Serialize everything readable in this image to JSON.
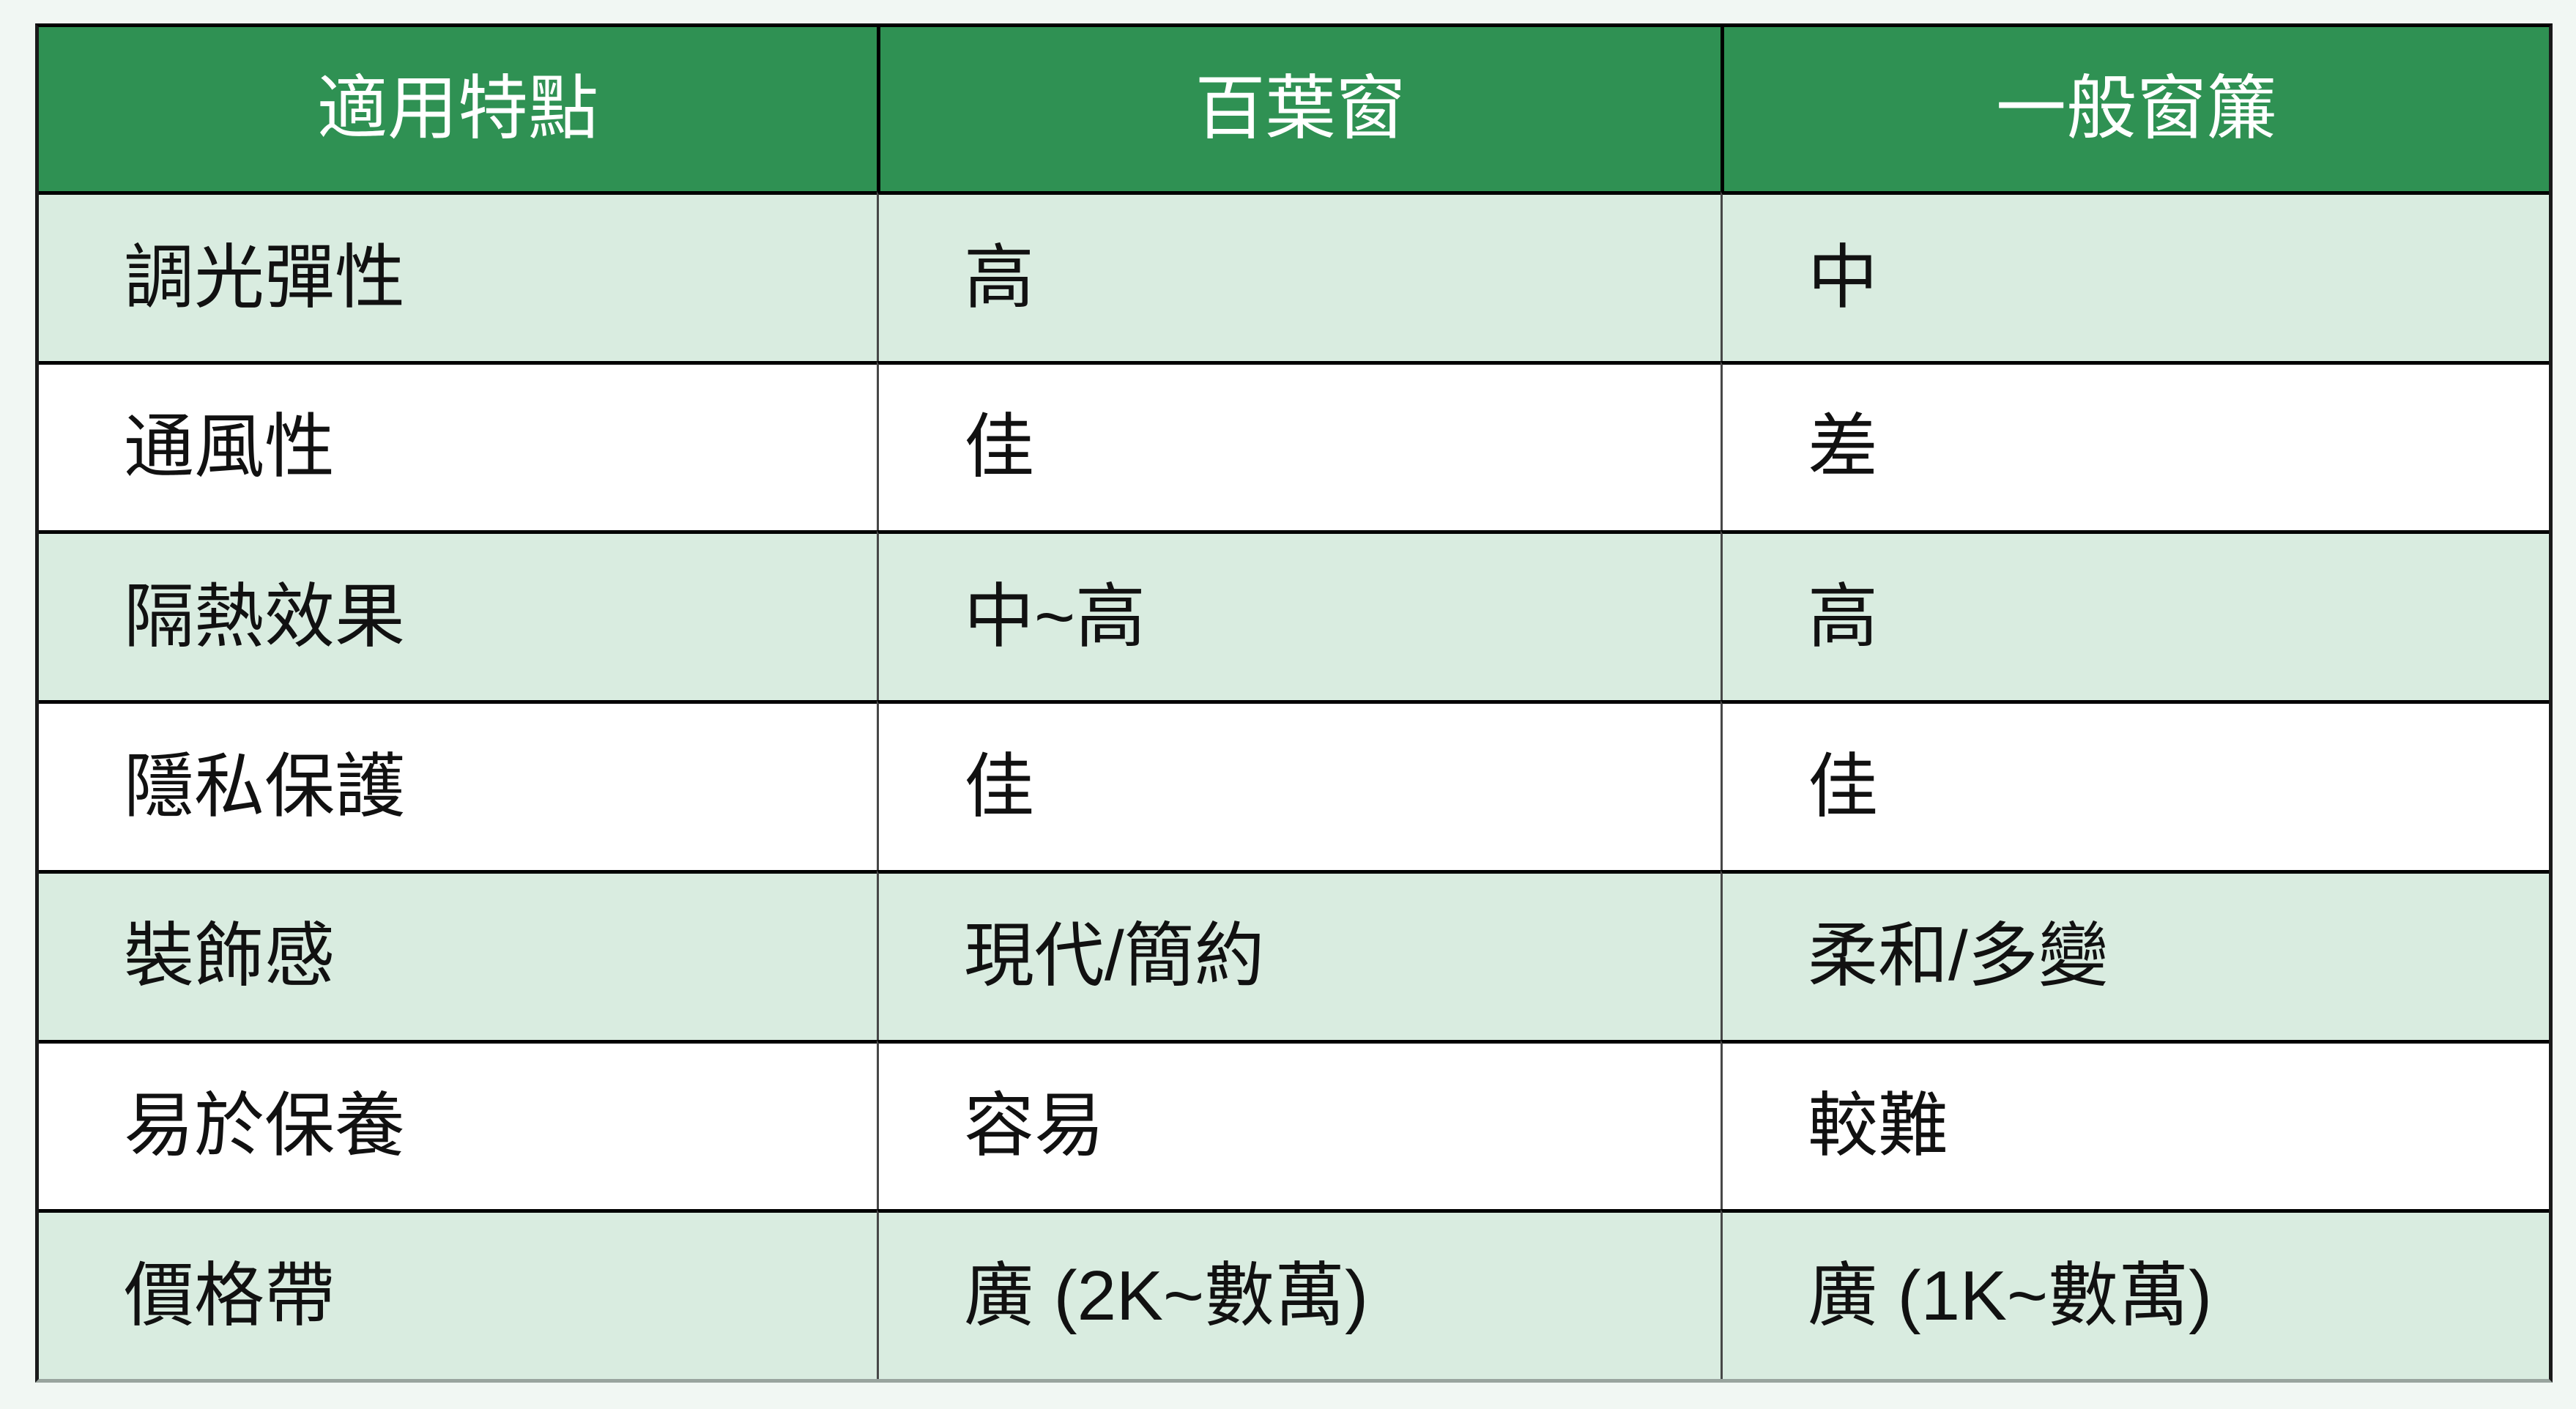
{
  "page": {
    "background_color": "#F1F7F3",
    "description": "Comparison table of venetian blinds vs regular curtains"
  },
  "table": {
    "colors": {
      "header_bg": "#2F9153",
      "header_text": "#FFFFFF",
      "row_alt_bg": "#D9ECE0",
      "row_bg": "#FFFFFF",
      "body_text": "#111111",
      "horizontal_border": "#000000",
      "vertical_border": "#474747",
      "bottom_border": "#99A49E"
    },
    "header": {
      "feature": "適用特點",
      "blinds": "百葉窗",
      "curtains": "一般窗簾"
    },
    "rows": [
      {
        "feature": "調光彈性",
        "blinds": "高",
        "curtains": "中"
      },
      {
        "feature": "通風性",
        "blinds": "佳",
        "curtains": "差"
      },
      {
        "feature": "隔熱效果",
        "blinds": "中~高",
        "curtains": "高"
      },
      {
        "feature": "隱私保護",
        "blinds": "佳",
        "curtains": "佳"
      },
      {
        "feature": "裝飾感",
        "blinds": "現代/簡約",
        "curtains": "柔和/多變"
      },
      {
        "feature": "易於保養",
        "blinds": "容易",
        "curtains": "較難"
      },
      {
        "feature": "價格帶",
        "blinds": "廣 (2K~數萬)",
        "curtains": "廣 (1K~數萬)"
      }
    ]
  }
}
